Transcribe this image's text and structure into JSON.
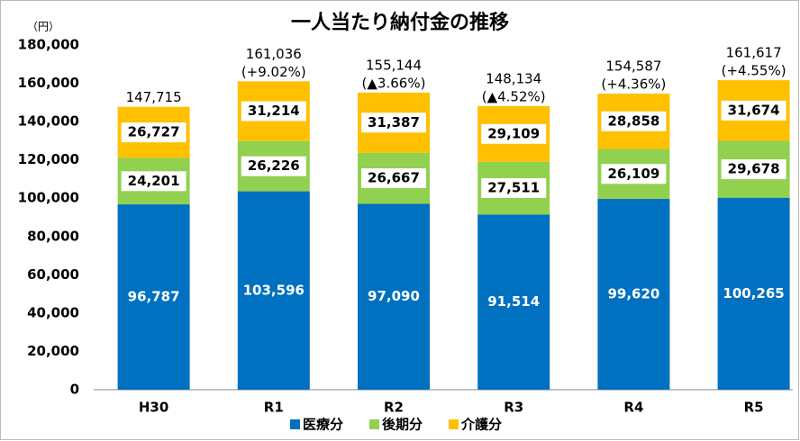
{
  "chart_data": {
    "type": "stacked_bar",
    "title": "一人当たり納付金の推移",
    "unit_label": "（円）",
    "categories": [
      "H30",
      "R1",
      "R2",
      "R3",
      "R4",
      "R5"
    ],
    "series": [
      {
        "name": "医療分",
        "color": "#0070c0",
        "values": [
          96787,
          103596,
          97090,
          91514,
          99620,
          100265
        ],
        "value_labels": [
          "96,787",
          "103,596",
          "97,090",
          "91,514",
          "99,620",
          "100,265"
        ]
      },
      {
        "name": "後期分",
        "color": "#92d050",
        "values": [
          24201,
          26226,
          26667,
          27511,
          26109,
          29678
        ],
        "value_labels": [
          "24,201",
          "26,226",
          "26,667",
          "27,511",
          "26,109",
          "29,678"
        ]
      },
      {
        "name": "介護分",
        "color": "#ffc000",
        "values": [
          26727,
          31214,
          31387,
          29109,
          28858,
          31674
        ],
        "value_labels": [
          "26,727",
          "31,214",
          "31,387",
          "29,109",
          "28,858",
          "31,674"
        ]
      }
    ],
    "totals": [
      147715,
      161036,
      155144,
      148134,
      154587,
      161617
    ],
    "total_labels": [
      "147,715",
      "161,036",
      "155,144",
      "148,134",
      "154,587",
      "161,617"
    ],
    "change_labels": [
      null,
      "(+9.02%)",
      "(▲3.66%)",
      "(▲4.52%)",
      "(+4.36%)",
      "(+4.55%)"
    ],
    "ylim": [
      0,
      180000
    ],
    "yticks": [
      0,
      {
        "value": 20000,
        "label": "20,000"
      },
      {
        "value": 40000,
        "label": "40,000"
      },
      {
        "value": 60000,
        "label": "60,000"
      },
      {
        "value": 80000,
        "label": "80,000"
      },
      {
        "value": 100000,
        "label": "100,000"
      },
      {
        "value": 120000,
        "label": "120,000"
      },
      {
        "value": 140000,
        "label": "140,000"
      },
      {
        "value": 160000,
        "label": "160,000"
      },
      {
        "value": 180000,
        "label": "180,000"
      }
    ],
    "legend": "bottom",
    "grid": false
  }
}
